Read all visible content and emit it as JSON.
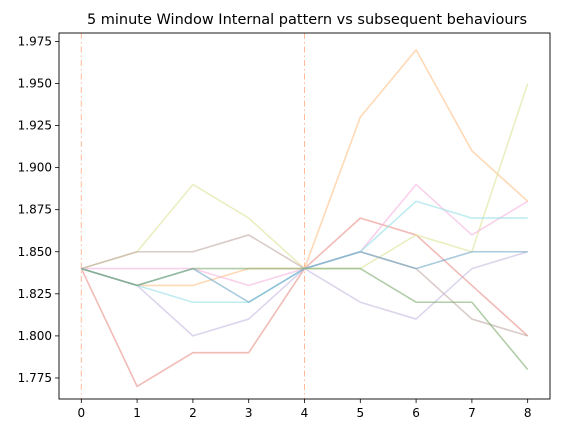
{
  "chart_data": {
    "type": "line",
    "title": "5 minute Window Internal pattern vs subsequent behaviours",
    "xlabel": "",
    "ylabel": "",
    "xlim": [
      -0.4,
      8.4
    ],
    "ylim": [
      1.7625,
      1.98
    ],
    "xticks": [
      0,
      1,
      2,
      3,
      4,
      5,
      6,
      7,
      8
    ],
    "xtick_labels": [
      "0",
      "1",
      "2",
      "3",
      "4",
      "5",
      "6",
      "7",
      "8"
    ],
    "yticks": [
      1.775,
      1.8,
      1.825,
      1.85,
      1.875,
      1.9,
      1.925,
      1.95,
      1.975
    ],
    "ytick_labels": [
      "1.775",
      "1.800",
      "1.825",
      "1.850",
      "1.875",
      "1.900",
      "1.925",
      "1.950",
      "1.975"
    ],
    "vlines": [
      0,
      4
    ],
    "vline_color": "#ffbb99",
    "grid": false,
    "legend": "none",
    "x": [
      0,
      1,
      2,
      3,
      4,
      5,
      6,
      7,
      8
    ],
    "series": [
      {
        "color": "#e88e85",
        "values": [
          1.84,
          1.77,
          1.79,
          1.79,
          1.84,
          1.87,
          1.86,
          1.83,
          1.8
        ]
      },
      {
        "color": "#ffbf86",
        "values": [
          1.84,
          1.83,
          1.83,
          1.84,
          1.84,
          1.93,
          1.97,
          1.91,
          1.88
        ]
      },
      {
        "color": "#dde396",
        "values": [
          1.84,
          1.85,
          1.89,
          1.87,
          1.84,
          1.84,
          1.86,
          1.85,
          1.95
        ]
      },
      {
        "color": "#bfa9a4",
        "values": [
          1.84,
          1.85,
          1.85,
          1.86,
          1.84,
          1.85,
          1.84,
          1.81,
          1.8
        ]
      },
      {
        "color": "#f5b3dc",
        "values": [
          1.84,
          1.84,
          1.84,
          1.83,
          1.84,
          1.85,
          1.89,
          1.86,
          1.88
        ]
      },
      {
        "color": "#95e0e6",
        "values": [
          1.84,
          1.83,
          1.82,
          1.82,
          1.84,
          1.85,
          1.88,
          1.87,
          1.87
        ]
      },
      {
        "color": "#c7b9e0",
        "values": [
          1.84,
          1.83,
          1.8,
          1.81,
          1.84,
          1.82,
          1.81,
          1.84,
          1.85
        ]
      },
      {
        "color": "#6fa8c8",
        "values": [
          1.84,
          1.83,
          1.84,
          1.82,
          1.84,
          1.85,
          1.84,
          1.85,
          1.85
        ]
      },
      {
        "color": "#7fab6f",
        "values": [
          1.84,
          1.83,
          1.84,
          1.84,
          1.84,
          1.84,
          1.82,
          1.82,
          1.78
        ]
      }
    ]
  }
}
